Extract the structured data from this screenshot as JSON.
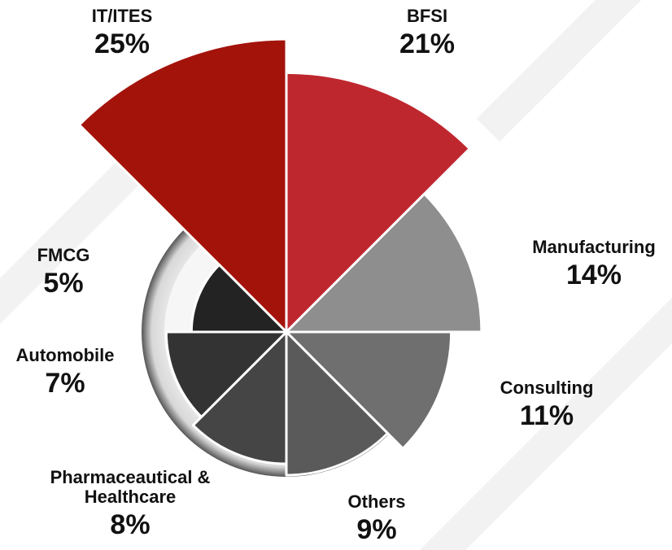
{
  "chart_data": {
    "type": "polar-area",
    "categories": [
      "IT/ITES",
      "BFSI",
      "Manufacturing",
      "Consulting",
      "Others",
      "Pharmaceautical & Healthcare",
      "Automobile",
      "FMCG"
    ],
    "values": [
      25,
      21,
      14,
      11,
      9,
      8,
      7,
      5
    ],
    "value_labels": [
      "25%",
      "21%",
      "14%",
      "11%",
      "9%",
      "8%",
      "7%",
      "5%"
    ],
    "colors": [
      "#a3130a",
      "#bf272e",
      "#8e8e8e",
      "#6f6f6f",
      "#5a5a5a",
      "#454545",
      "#333333",
      "#232323"
    ]
  }
}
